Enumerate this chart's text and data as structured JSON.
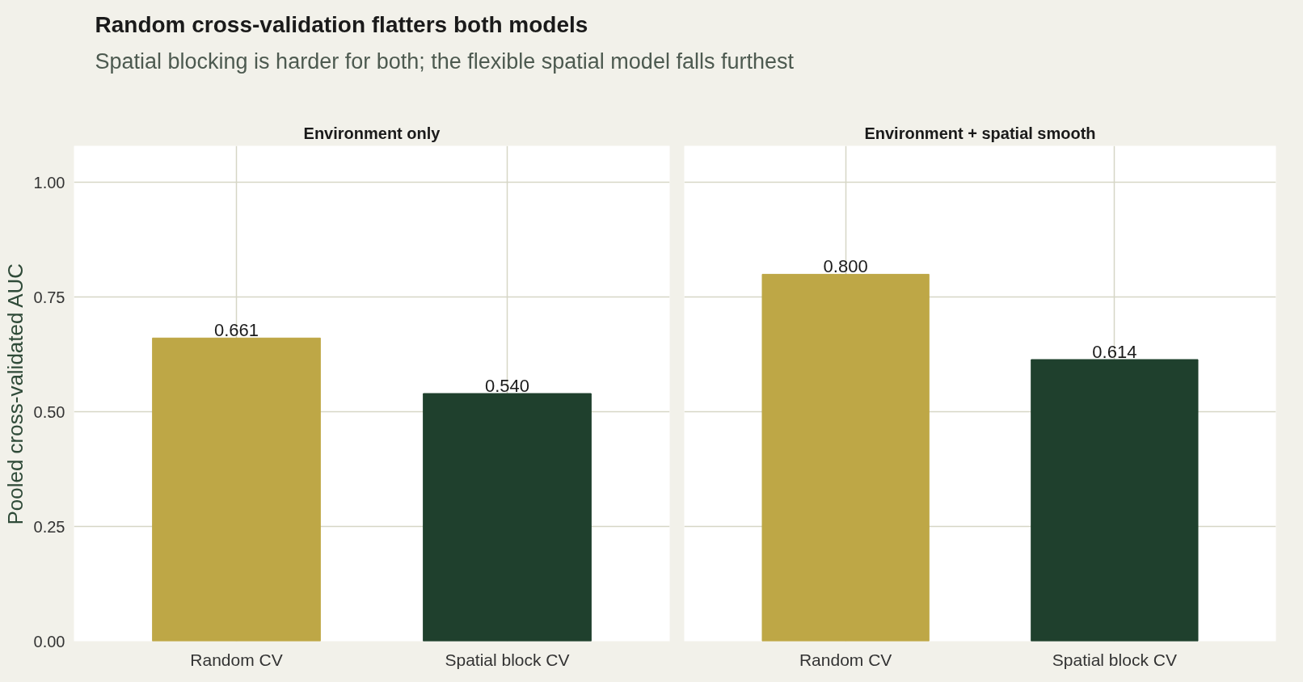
{
  "chart_data": [
    {
      "type": "other",
      "title": "Random cross-validation flatters both models",
      "subtitle": "Spatial blocking is harder for both; the flexible spatial model falls furthest"
    },
    {
      "type": "bar",
      "title": "Environment only",
      "ylabel": "Pooled cross-validated AUC",
      "categories": [
        "Random CV",
        "Spatial block CV"
      ],
      "values": [
        0.661,
        0.54
      ],
      "colors": [
        "#bea746",
        "#1f402d"
      ],
      "value_labels": [
        "0.661",
        "0.540"
      ],
      "ylim": [
        0,
        1.08
      ],
      "yticks": [
        {
          "value": 0,
          "label": "0.00"
        },
        {
          "value": 0.25,
          "label": "0.25"
        },
        {
          "value": 0.5,
          "label": "0.50"
        },
        {
          "value": 0.75,
          "label": "0.75"
        },
        {
          "value": 1,
          "label": "1.00"
        }
      ],
      "grid": true
    },
    {
      "type": "bar",
      "title": "Environment + spatial smooth",
      "categories": [
        "Random CV",
        "Spatial block CV"
      ],
      "values": [
        0.8,
        0.614
      ],
      "colors": [
        "#bea746",
        "#1f402d"
      ],
      "value_labels": [
        "0.800",
        "0.614"
      ],
      "ylim": [
        0,
        1.08
      ],
      "yticks": [
        {
          "value": 0,
          "label": null
        },
        {
          "value": 0.25,
          "label": null
        },
        {
          "value": 0.5,
          "label": null
        },
        {
          "value": 0.75,
          "label": null
        },
        {
          "value": 1,
          "label": null
        }
      ],
      "grid": true,
      "tick_labels": "x"
    }
  ]
}
